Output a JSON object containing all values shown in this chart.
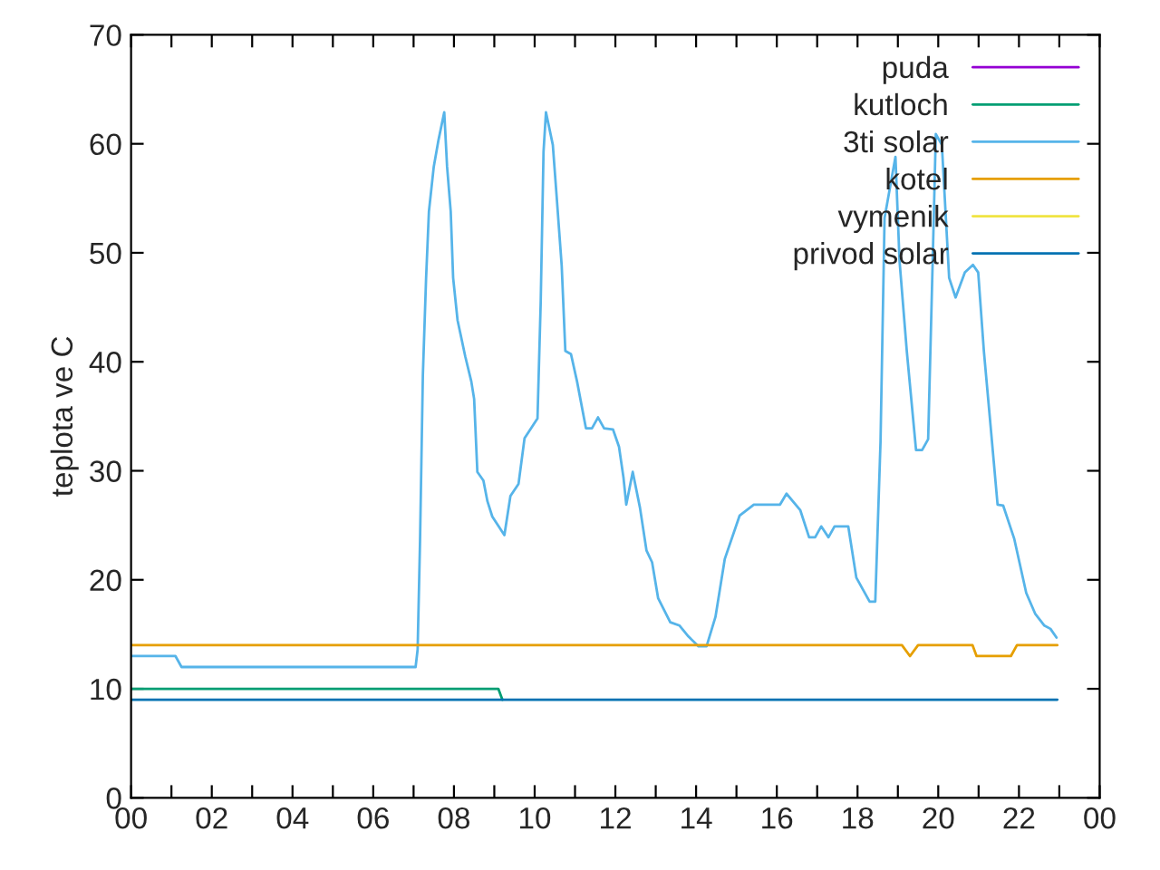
{
  "chart_data": {
    "type": "line",
    "ylabel": "teplota ve C",
    "xlim": [
      0,
      24
    ],
    "ylim": [
      0,
      70
    ],
    "xticks": [
      {
        "value": 0,
        "label": "00"
      },
      {
        "value": 1,
        "label": null
      },
      {
        "value": 2,
        "label": "02"
      },
      {
        "value": 3,
        "label": null
      },
      {
        "value": 4,
        "label": "04"
      },
      {
        "value": 5,
        "label": null
      },
      {
        "value": 6,
        "label": "06"
      },
      {
        "value": 7,
        "label": null
      },
      {
        "value": 8,
        "label": "08"
      },
      {
        "value": 9,
        "label": null
      },
      {
        "value": 10,
        "label": "10"
      },
      {
        "value": 11,
        "label": null
      },
      {
        "value": 12,
        "label": "12"
      },
      {
        "value": 13,
        "label": null
      },
      {
        "value": 14,
        "label": "14"
      },
      {
        "value": 15,
        "label": null
      },
      {
        "value": 16,
        "label": "16"
      },
      {
        "value": 17,
        "label": null
      },
      {
        "value": 18,
        "label": "18"
      },
      {
        "value": 19,
        "label": null
      },
      {
        "value": 20,
        "label": "20"
      },
      {
        "value": 21,
        "label": null
      },
      {
        "value": 22,
        "label": "22"
      },
      {
        "value": 23,
        "label": null
      },
      {
        "value": 24,
        "label": "00"
      }
    ],
    "yticks": [
      0,
      10,
      20,
      30,
      40,
      50,
      60,
      70
    ],
    "grid": false,
    "legend": "top right",
    "marker": "none",
    "line_style": "solid",
    "series": [
      {
        "name": "puda",
        "color": "#9400d3"
      },
      {
        "name": "kutloch",
        "color": "#009e73",
        "x": [
          0,
          9.1,
          9.2
        ],
        "values": [
          10,
          10,
          9
        ]
      },
      {
        "name": "3ti solar",
        "color": "#56b4e9",
        "x": [
          0,
          1.1,
          1.25,
          7.05,
          7.1,
          7.16,
          7.23,
          7.31,
          7.38,
          7.5,
          7.62,
          7.76,
          7.83,
          7.92,
          7.98,
          8.09,
          8.28,
          8.43,
          8.5,
          8.58,
          8.73,
          8.83,
          8.95,
          9.25,
          9.4,
          9.6,
          9.75,
          10.07,
          10.15,
          10.22,
          10.28,
          10.45,
          10.55,
          10.67,
          10.76,
          10.9,
          11.05,
          11.27,
          11.42,
          11.57,
          11.72,
          11.94,
          12.09,
          12.2,
          12.27,
          12.43,
          12.61,
          12.77,
          12.91,
          13.06,
          13.36,
          13.59,
          13.81,
          14.06,
          14.26,
          14.48,
          14.71,
          15.08,
          15.43,
          16.08,
          16.24,
          16.58,
          16.8,
          16.95,
          17.1,
          17.28,
          17.43,
          17.77,
          17.97,
          18.3,
          18.44,
          18.57,
          18.67,
          18.94,
          19.04,
          19.22,
          19.45,
          19.6,
          19.75,
          19.87,
          19.94,
          20.09,
          20.27,
          20.43,
          20.66,
          20.86,
          20.99,
          21.13,
          21.29,
          21.47,
          21.61,
          21.88,
          22.18,
          22.4,
          22.63,
          22.78,
          22.93
        ],
        "values": [
          13,
          13,
          12,
          12,
          13.6,
          23.6,
          38.8,
          47.7,
          53.8,
          57.9,
          60.4,
          62.9,
          57.9,
          53.8,
          47.7,
          43.8,
          40.5,
          38.2,
          36.6,
          29.9,
          29.1,
          27.2,
          25.8,
          24.1,
          27.7,
          28.8,
          33,
          34.8,
          45.5,
          59.3,
          62.9,
          59.9,
          54.9,
          48.8,
          41,
          40.7,
          38.2,
          33.9,
          33.9,
          34.9,
          33.9,
          33.8,
          32.2,
          29.4,
          26.9,
          29.9,
          26.6,
          22.7,
          21.6,
          18.3,
          16.1,
          15.8,
          14.8,
          13.9,
          13.9,
          16.6,
          21.9,
          25.9,
          26.9,
          26.9,
          27.9,
          26.4,
          23.9,
          23.9,
          24.9,
          23.9,
          24.9,
          24.9,
          20.2,
          18,
          18,
          32.7,
          53.2,
          58.8,
          49.3,
          41,
          31.9,
          31.9,
          32.9,
          50.4,
          60.9,
          59.9,
          47.7,
          45.9,
          48.2,
          48.9,
          48.2,
          41,
          34.4,
          26.9,
          26.8,
          23.8,
          18.8,
          16.9,
          15.8,
          15.5,
          14.7
        ]
      },
      {
        "name": "kotel",
        "color": "#e69f00",
        "x": [
          0,
          19.1,
          19.3,
          19.5,
          20.85,
          20.95,
          21.8,
          21.95,
          22.95
        ],
        "values": [
          14,
          14,
          13,
          14,
          14,
          13,
          13,
          14,
          14
        ]
      },
      {
        "name": "vymenik",
        "color": "#f0e442"
      },
      {
        "name": "privod solar",
        "color": "#0072b2",
        "x": [
          0,
          22.95
        ],
        "values": [
          9,
          9
        ]
      }
    ]
  }
}
